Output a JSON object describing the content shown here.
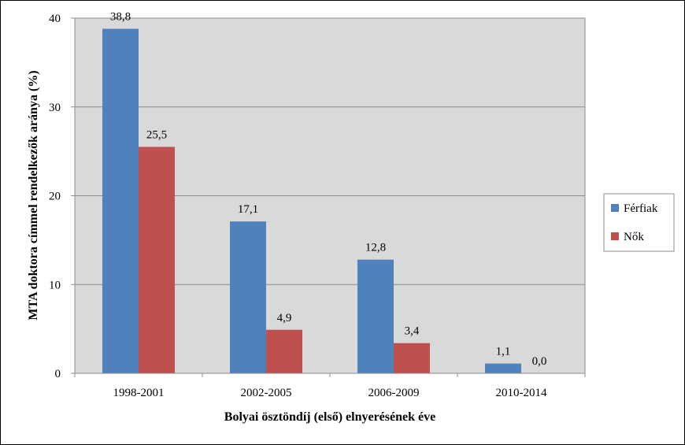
{
  "chart_data": {
    "type": "bar",
    "categories": [
      "1998-2001",
      "2002-2005",
      "2006-2009",
      "2010-2014"
    ],
    "series": [
      {
        "name": "Férfiak",
        "values": [
          38.8,
          17.1,
          12.8,
          1.1
        ],
        "labels": [
          "38,8",
          "17,1",
          "12,8",
          "1,1"
        ],
        "color": "#4f81bd"
      },
      {
        "name": "Nők",
        "values": [
          25.5,
          4.9,
          3.4,
          0.0
        ],
        "labels": [
          "25,5",
          "4,9",
          "3,4",
          "0,0"
        ],
        "color": "#c0504d"
      }
    ],
    "xlabel": "Bolyai ösztöndíj (első) elnyerésének éve",
    "ylabel": "MTA doktora címmel rendelkezők aránya (%)",
    "ylim": [
      0,
      40
    ],
    "yticks": [
      "0",
      "10",
      "20",
      "30",
      "40"
    ],
    "grid": true,
    "legend_position": "right",
    "plot_background": "#d9d9d9"
  }
}
